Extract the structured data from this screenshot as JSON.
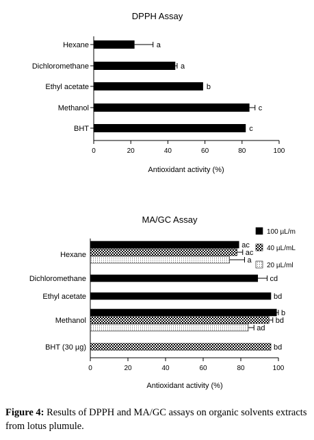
{
  "chart_data": [
    {
      "type": "bar",
      "orientation": "horizontal",
      "title": "DPPH Assay",
      "xlabel": "Antioxidant activity (%)",
      "ylabel": "",
      "xlim": [
        0,
        100
      ],
      "xticks": [
        "0",
        "20",
        "40",
        "60",
        "80",
        "100"
      ],
      "categories": [
        "Hexane",
        "Dichloromethane",
        "Ethyl acetate",
        "Methanol",
        "BHT"
      ],
      "series": [
        {
          "values": [
            22,
            44,
            59,
            84,
            82
          ],
          "errors": [
            10,
            1,
            0,
            3,
            0
          ],
          "letters": [
            "a",
            "a",
            "b",
            "c",
            "c"
          ]
        }
      ]
    },
    {
      "type": "bar",
      "orientation": "horizontal",
      "title": "MA/GC Assay",
      "xlabel": "Antioxidant activity (%)",
      "ylabel": "",
      "xlim": [
        0,
        100
      ],
      "xticks": [
        "0",
        "20",
        "40",
        "60",
        "80",
        "100"
      ],
      "legend_position": "top-right",
      "categories": [
        "Hexane",
        "Dichloromethane",
        "Ethyl acetate",
        "Methanol",
        "BHT (30 µg)"
      ],
      "series": [
        {
          "name": "100 µL/m",
          "pattern": "solid",
          "values": [
            79,
            89,
            96,
            99,
            null
          ],
          "errors": [
            0,
            5,
            0,
            1,
            null
          ],
          "letters": [
            "ac",
            "cd",
            "bd",
            "b",
            null
          ]
        },
        {
          "name": "40 µL/mL",
          "pattern": "checker",
          "values": [
            78,
            null,
            null,
            95,
            96
          ],
          "errors": [
            3,
            null,
            null,
            2,
            0
          ],
          "letters": [
            "ac",
            null,
            null,
            "bd",
            "bd"
          ]
        },
        {
          "name": "20 µL/ml",
          "pattern": "dotted",
          "values": [
            74,
            null,
            null,
            84,
            null
          ],
          "errors": [
            8,
            null,
            null,
            3,
            null
          ],
          "letters": [
            "a",
            null,
            null,
            "ad",
            null
          ]
        }
      ]
    }
  ],
  "caption": {
    "label": "Figure 4:",
    "text": " Results of DPPH and MA/GC assays on organic solvents extracts from lotus plumule."
  }
}
